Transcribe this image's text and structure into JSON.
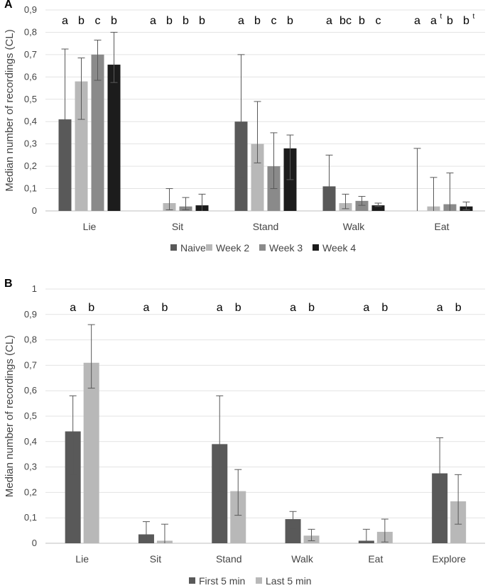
{
  "chart_data": [
    {
      "panel": "A",
      "type": "bar",
      "ylabel": "Median number of recordings (CL)",
      "ylim": [
        0,
        0.9
      ],
      "ytick_labels": [
        "0",
        "0,1",
        "0,2",
        "0,3",
        "0,4",
        "0,5",
        "0,6",
        "0,7",
        "0,8",
        "0,9"
      ],
      "categories": [
        "Lie",
        "Sit",
        "Stand",
        "Walk",
        "Eat"
      ],
      "legend_position": "bottom",
      "series": [
        {
          "name": "Naive",
          "color": "#595959",
          "values": [
            0.41,
            0,
            0.4,
            0.11,
            0
          ],
          "err_low": [
            0,
            0,
            0.15,
            0.01,
            0
          ],
          "err_high": [
            0.725,
            0,
            0.7,
            0.25,
            0.28
          ]
        },
        {
          "name": "Week 2",
          "color": "#b8b8b8",
          "values": [
            0.58,
            0.035,
            0.3,
            0.035,
            0.02
          ],
          "err_low": [
            0.41,
            0.005,
            0.215,
            0.01,
            0.0
          ],
          "err_high": [
            0.685,
            0.1,
            0.49,
            0.075,
            0.15
          ]
        },
        {
          "name": "Week 3",
          "color": "#8a8a8a",
          "values": [
            0.7,
            0.02,
            0.2,
            0.045,
            0.03
          ],
          "err_low": [
            0.585,
            0.005,
            0.1,
            0.025,
            0.0
          ],
          "err_high": [
            0.765,
            0.06,
            0.35,
            0.065,
            0.17
          ]
        },
        {
          "name": "Week 4",
          "color": "#1c1c1c",
          "values": [
            0.655,
            0.025,
            0.28,
            0.025,
            0.02
          ],
          "err_low": [
            0.575,
            0.0,
            0.14,
            0.02,
            0.005
          ],
          "err_high": [
            0.8,
            0.075,
            0.34,
            0.035,
            0.04
          ]
        }
      ],
      "significance": [
        [
          "a",
          "b",
          "c",
          "b"
        ],
        [
          "a",
          "b",
          "b",
          "b"
        ],
        [
          "a",
          "b",
          "c",
          "b"
        ],
        [
          "a",
          "bc",
          "b",
          "c"
        ],
        [
          "a",
          "a",
          "b",
          "b"
        ]
      ],
      "significance_superscripts": [
        [
          "",
          "",
          "",
          ""
        ],
        [
          "",
          "",
          "",
          ""
        ],
        [
          "",
          "",
          "",
          ""
        ],
        [
          "",
          "",
          "",
          ""
        ],
        [
          "",
          "t",
          "",
          "t"
        ]
      ]
    },
    {
      "panel": "B",
      "type": "bar",
      "ylabel": "Median number of recordings (CL)",
      "ylim": [
        0,
        1.0
      ],
      "ytick_labels": [
        "0",
        "0,1",
        "0,2",
        "0,3",
        "0,4",
        "0,5",
        "0,6",
        "0,7",
        "0,8",
        "0,9",
        "1"
      ],
      "categories": [
        "Lie",
        "Sit",
        "Stand",
        "Walk",
        "Eat",
        "Explore"
      ],
      "legend_position": "bottom",
      "series": [
        {
          "name": "First 5 min",
          "color": "#595959",
          "values": [
            0.44,
            0.035,
            0.39,
            0.095,
            0.01,
            0.275
          ],
          "err_low": [
            0.27,
            0.005,
            0.2,
            0.06,
            0.0,
            0.13
          ],
          "err_high": [
            0.58,
            0.085,
            0.58,
            0.125,
            0.055,
            0.415
          ]
        },
        {
          "name": "Last 5 min",
          "color": "#b8b8b8",
          "values": [
            0.71,
            0.01,
            0.205,
            0.03,
            0.045,
            0.165
          ],
          "err_low": [
            0.61,
            0.0,
            0.11,
            0.01,
            0.005,
            0.075
          ],
          "err_high": [
            0.86,
            0.075,
            0.29,
            0.055,
            0.095,
            0.27
          ]
        }
      ],
      "significance": [
        [
          "a",
          "b"
        ],
        [
          "a",
          "b"
        ],
        [
          "a",
          "b"
        ],
        [
          "a",
          "b"
        ],
        [
          "a",
          "b"
        ],
        [
          "a",
          "b"
        ]
      ],
      "significance_superscripts": [
        [
          "",
          ""
        ],
        [
          "",
          ""
        ],
        [
          "",
          ""
        ],
        [
          "",
          ""
        ],
        [
          "",
          ""
        ],
        [
          "",
          ""
        ]
      ]
    }
  ]
}
